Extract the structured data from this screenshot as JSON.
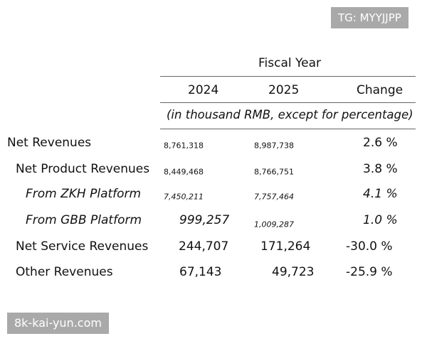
{
  "watermarks": {
    "top": "TG: MYYJJPP",
    "bottom": "8k-kai-yun.com"
  },
  "table": {
    "group_header": "Fiscal Year",
    "columns": [
      "2024",
      "2025",
      "Change"
    ],
    "unit_note": "(in thousand RMB, except for percentage)",
    "rows": [
      {
        "label": "Net Revenues",
        "y2024": "8,761,318",
        "y2025": "8,987,738",
        "change": "2.6 %"
      },
      {
        "label": "Net Product Revenues",
        "y2024": "8,449,468",
        "y2025": "8,766,751",
        "change": "3.8 %"
      },
      {
        "label": "From ZKH Platform",
        "y2024": "7,450,211",
        "y2025": "7,757,464",
        "change": "4.1 %"
      },
      {
        "label": "From GBB Platform",
        "y2024": "999,257",
        "y2025": "1,009,287",
        "change": "1.0 %"
      },
      {
        "label": "Net Service Revenues",
        "y2024": "244,707",
        "y2025": "171,264",
        "change": "-30.0 %"
      },
      {
        "label": "Other Revenues",
        "y2024": "67,143",
        "y2025": "49,723",
        "change": "-25.9 %"
      }
    ]
  }
}
